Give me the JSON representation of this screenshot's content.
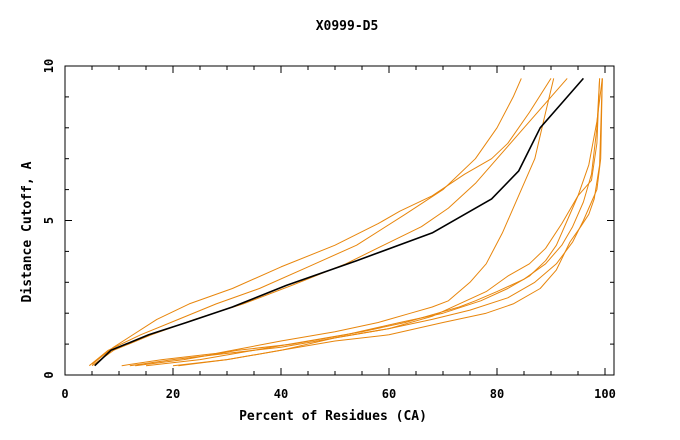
{
  "chart_data": {
    "type": "line",
    "title": "X0999-D5",
    "xlabel": "Percent of Residues (CA)",
    "ylabel": "Distance Cutoff, A",
    "xlim": [
      0,
      100
    ],
    "ylim": [
      0,
      10
    ],
    "xticks": [
      "0",
      "20",
      "40",
      "60",
      "80",
      "100"
    ],
    "yticks": [
      "0",
      "5",
      "10"
    ],
    "grid": false,
    "colors": {
      "highlight": "#000000",
      "others": "#e8860c"
    },
    "series": [
      {
        "highlight": true,
        "x": [
          5.5,
          8.5,
          15.5,
          22.5,
          31,
          41,
          54,
          68,
          79,
          84,
          88,
          92,
          96
        ],
        "y": [
          0.3,
          0.8,
          1.3,
          1.7,
          2.2,
          2.9,
          3.7,
          4.6,
          5.7,
          6.6,
          8.0,
          8.8,
          9.6
        ]
      },
      {
        "x": [
          4.5,
          8,
          14,
          21,
          28,
          36,
          45,
          54,
          63,
          70,
          76,
          80,
          83,
          84.5
        ],
        "y": [
          0.3,
          0.8,
          1.3,
          1.8,
          2.3,
          2.8,
          3.5,
          4.2,
          5.2,
          6.0,
          7.0,
          8.0,
          9.0,
          9.6
        ]
      },
      {
        "x": [
          5,
          9,
          17,
          23,
          31,
          40,
          50,
          58,
          62,
          68,
          74,
          79,
          82,
          86,
          90
        ],
        "y": [
          0.35,
          0.9,
          1.8,
          2.3,
          2.8,
          3.5,
          4.2,
          4.9,
          5.3,
          5.8,
          6.5,
          7.0,
          7.5,
          8.5,
          9.6
        ]
      },
      {
        "x": [
          5,
          9,
          16,
          24,
          33,
          42,
          52,
          59,
          66,
          71,
          76,
          80,
          85,
          90,
          93
        ],
        "y": [
          0.3,
          0.8,
          1.3,
          1.8,
          2.3,
          2.9,
          3.6,
          4.2,
          4.8,
          5.4,
          6.2,
          7.0,
          8.0,
          9.0,
          9.6
        ]
      },
      {
        "x": [
          10.5,
          18,
          28,
          40,
          50,
          58,
          64,
          68,
          71,
          75,
          78,
          81,
          84,
          87,
          89,
          90.5
        ],
        "y": [
          0.3,
          0.5,
          0.7,
          1.1,
          1.4,
          1.7,
          2.0,
          2.2,
          2.4,
          3.0,
          3.6,
          4.6,
          5.8,
          7.0,
          8.5,
          9.6
        ]
      },
      {
        "x": [
          12,
          20,
          30,
          40,
          50,
          60,
          68,
          73,
          78,
          82,
          86,
          89,
          92,
          95,
          97,
          98.5,
          99.5
        ],
        "y": [
          0.3,
          0.5,
          0.7,
          0.9,
          1.2,
          1.5,
          1.9,
          2.3,
          2.7,
          3.2,
          3.6,
          4.1,
          4.9,
          5.8,
          6.8,
          8.2,
          9.6
        ]
      },
      {
        "x": [
          13,
          22,
          32,
          42,
          52,
          62,
          70,
          77,
          82,
          86,
          89,
          91,
          93,
          95,
          97.5,
          98.5,
          99
        ],
        "y": [
          0.3,
          0.5,
          0.8,
          1.0,
          1.3,
          1.7,
          2.0,
          2.4,
          2.8,
          3.2,
          3.7,
          4.2,
          5.0,
          5.8,
          6.3,
          7.5,
          9.6
        ]
      },
      {
        "x": [
          15,
          25,
          35,
          45,
          55,
          63,
          69,
          73,
          76,
          80,
          85,
          89,
          92,
          94,
          96,
          97.5,
          98.5,
          99
        ],
        "y": [
          0.3,
          0.5,
          0.8,
          1.1,
          1.4,
          1.7,
          2.0,
          2.2,
          2.4,
          2.7,
          3.1,
          3.6,
          4.2,
          4.8,
          5.6,
          6.5,
          8.0,
          9.6
        ]
      },
      {
        "x": [
          20,
          30,
          40,
          50,
          60,
          70,
          78,
          83,
          88,
          91,
          93.5,
          95.5,
          97,
          98,
          99,
          99.5
        ],
        "y": [
          0.3,
          0.5,
          0.8,
          1.1,
          1.3,
          1.7,
          2.0,
          2.3,
          2.8,
          3.4,
          4.3,
          4.8,
          5.2,
          5.7,
          6.8,
          9.6
        ]
      },
      {
        "x": [
          21,
          30,
          40,
          50,
          60,
          68,
          75,
          82,
          87,
          91,
          94,
          96,
          97.5,
          98.5,
          99.2,
          99.5
        ],
        "y": [
          0.3,
          0.5,
          0.8,
          1.2,
          1.5,
          1.8,
          2.1,
          2.5,
          3.0,
          3.6,
          4.3,
          5.0,
          5.6,
          6.0,
          7.0,
          9.6
        ]
      }
    ]
  }
}
